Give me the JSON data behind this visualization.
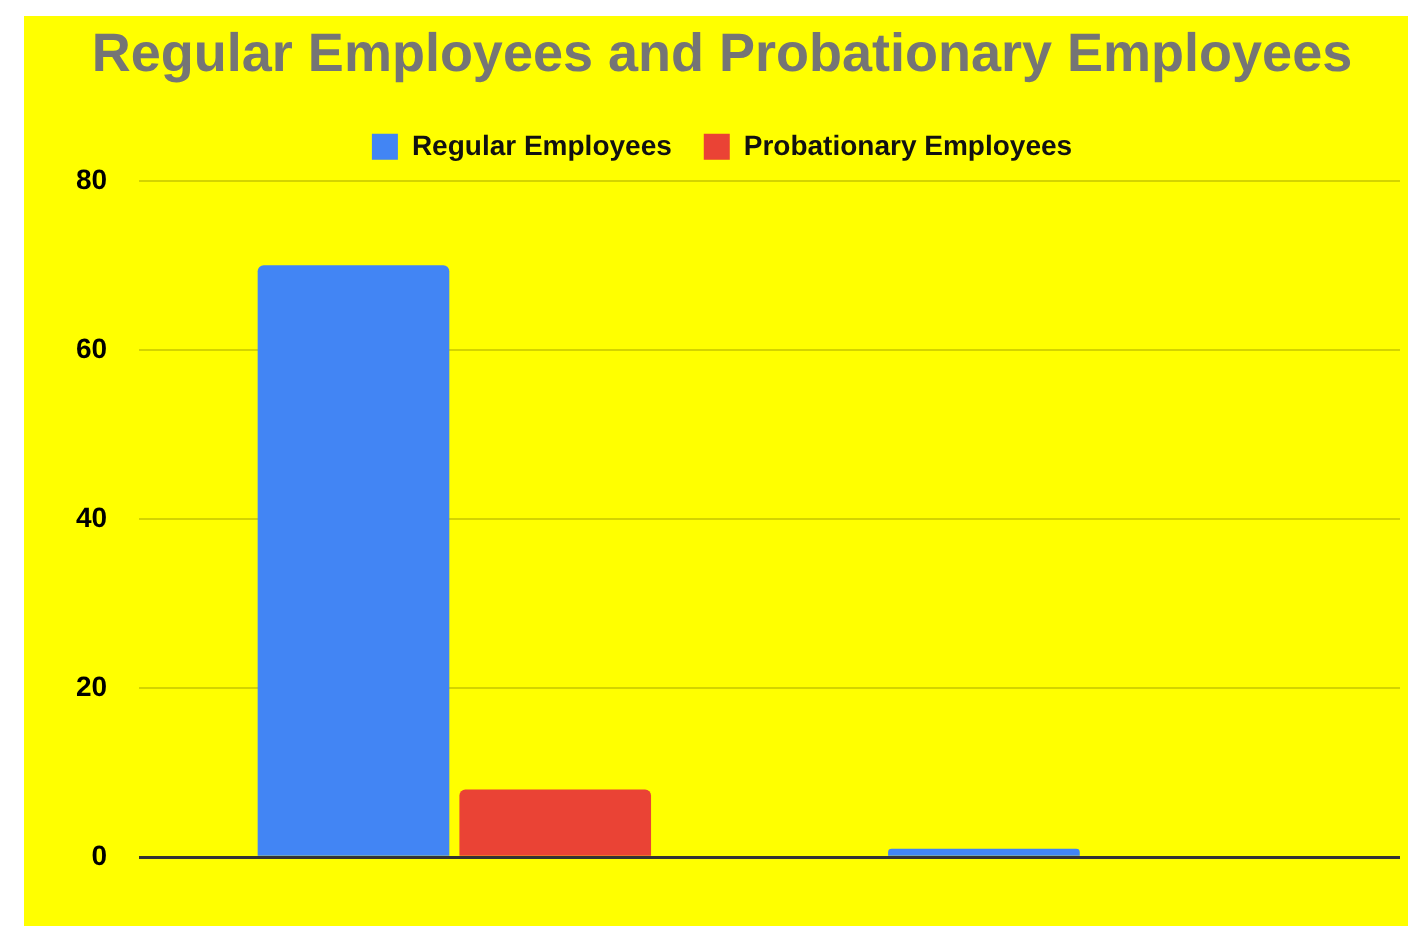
{
  "chart_data": {
    "type": "bar",
    "title": "Regular Employees and Probationary Employees",
    "categories": [
      null,
      null
    ],
    "series": [
      {
        "name": "Regular Employees",
        "color": "#4285f4",
        "values": [
          70,
          1
        ]
      },
      {
        "name": "Probationary Employees",
        "color": "#ea4335",
        "values": [
          8,
          0
        ]
      }
    ],
    "ylim": [
      0,
      80
    ],
    "yticks": [
      0,
      20,
      40,
      60,
      80
    ],
    "grid": "y",
    "legend": "top"
  }
}
